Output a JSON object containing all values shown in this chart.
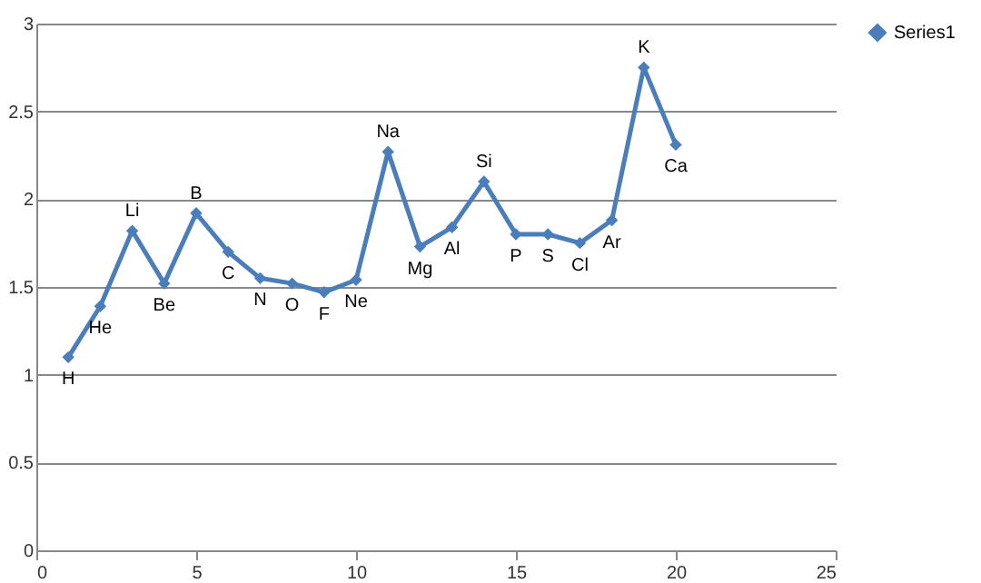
{
  "chart_data": {
    "type": "line",
    "x": [
      1,
      2,
      3,
      4,
      5,
      6,
      7,
      8,
      9,
      10,
      11,
      12,
      13,
      14,
      15,
      16,
      17,
      18,
      19,
      20
    ],
    "series": [
      {
        "name": "Series1",
        "color": "#4a7ebb",
        "values": [
          1.1,
          1.39,
          1.82,
          1.52,
          1.92,
          1.7,
          1.55,
          1.52,
          1.47,
          1.54,
          2.27,
          1.73,
          1.84,
          2.1,
          1.8,
          1.8,
          1.75,
          1.88,
          2.75,
          2.31
        ]
      }
    ],
    "annotations": [
      {
        "text": "H",
        "x": 1,
        "y": 1.1
      },
      {
        "text": "He",
        "x": 2,
        "y": 1.39
      },
      {
        "text": "Li",
        "x": 3,
        "y": 1.82
      },
      {
        "text": "Be",
        "x": 4,
        "y": 1.52
      },
      {
        "text": "B",
        "x": 5,
        "y": 1.92
      },
      {
        "text": "C",
        "x": 6,
        "y": 1.7
      },
      {
        "text": "N",
        "x": 7,
        "y": 1.55
      },
      {
        "text": "O",
        "x": 8,
        "y": 1.52
      },
      {
        "text": "F",
        "x": 9,
        "y": 1.47
      },
      {
        "text": "Ne",
        "x": 10,
        "y": 1.54
      },
      {
        "text": "Na",
        "x": 11,
        "y": 2.27
      },
      {
        "text": "Mg",
        "x": 12,
        "y": 1.73
      },
      {
        "text": "Al",
        "x": 13,
        "y": 1.84
      },
      {
        "text": "Si",
        "x": 14,
        "y": 2.1
      },
      {
        "text": "P",
        "x": 15,
        "y": 1.8
      },
      {
        "text": "S",
        "x": 16,
        "y": 1.8
      },
      {
        "text": "Cl",
        "x": 17,
        "y": 1.75
      },
      {
        "text": "Ar",
        "x": 18,
        "y": 1.88
      },
      {
        "text": "K",
        "x": 19,
        "y": 2.75
      },
      {
        "text": "Ca",
        "x": 20,
        "y": 2.31
      }
    ],
    "xlim": [
      0,
      25
    ],
    "xticks": [
      0,
      5,
      10,
      15,
      20,
      25
    ],
    "ylim": [
      0,
      3
    ],
    "yticks": [
      0,
      0.5,
      1,
      1.5,
      2,
      2.5,
      3
    ],
    "grid": "y",
    "legend": "right",
    "marker": "diamond",
    "line_style": "solid"
  }
}
